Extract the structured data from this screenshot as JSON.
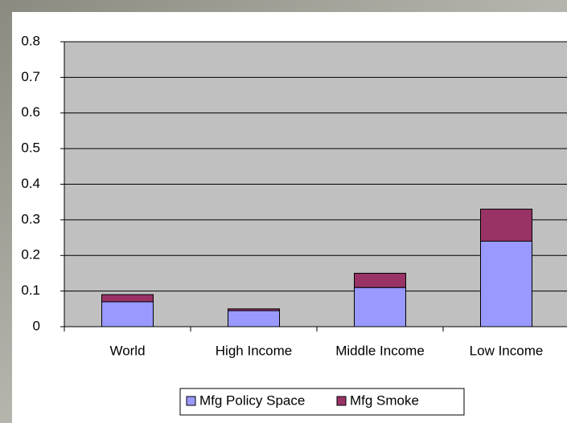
{
  "chart_data": {
    "type": "stacked_bar",
    "categories": [
      "World",
      "High Income",
      "Middle Income",
      "Low Income"
    ],
    "series": [
      {
        "name": "Mfg Policy Space",
        "color": "#9999ff",
        "values": [
          0.07,
          0.045,
          0.11,
          0.24
        ]
      },
      {
        "name": "Mfg Smoke",
        "color": "#993366",
        "values": [
          0.02,
          0.005,
          0.04,
          0.09
        ]
      }
    ],
    "ylim": [
      0,
      0.8
    ],
    "yticks": [
      0,
      0.1,
      0.2,
      0.3,
      0.4,
      0.5,
      0.6,
      0.7,
      0.8
    ],
    "grid": true,
    "legend": "bottom"
  }
}
